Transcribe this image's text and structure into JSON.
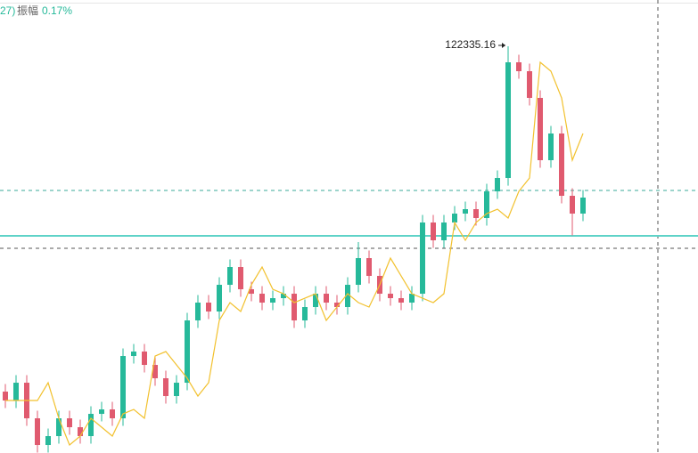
{
  "header": {
    "prefix": "27)",
    "label": "振幅",
    "value": "0.17%"
  },
  "chart_data": {
    "type": "candlestick",
    "ylim": [
      74078,
      127826
    ],
    "up_color": "#26b99a",
    "down_color": "#e05a6f",
    "ma_color": "#f2c12e",
    "open": [
      81362,
      80306,
      82418,
      78194,
      75026,
      76082,
      78194,
      77138,
      76082,
      78722,
      79250,
      78194,
      85586,
      86114,
      84530,
      82946,
      80834,
      82418,
      89810,
      91922,
      90866,
      94034,
      96146,
      93506,
      92978,
      91922,
      92450,
      92978,
      89810,
      91394,
      92978,
      91922,
      91394,
      94034,
      97202,
      95090,
      92978,
      92450,
      91922,
      92978,
      101426,
      99314,
      101426,
      102482,
      103010,
      101954,
      105122,
      106706,
      120434,
      119378,
      116210,
      108818,
      111986,
      104594,
      102482
    ],
    "close": [
      80306,
      82418,
      78194,
      75026,
      76082,
      78194,
      77138,
      76082,
      78722,
      79250,
      78194,
      85586,
      86114,
      84530,
      82946,
      80834,
      82418,
      89810,
      91922,
      90866,
      94034,
      96146,
      93506,
      92978,
      91922,
      92450,
      92978,
      89810,
      91394,
      92978,
      91922,
      91394,
      94034,
      97202,
      95090,
      92978,
      92450,
      91922,
      92978,
      101426,
      99314,
      101426,
      102482,
      103010,
      101954,
      105122,
      106706,
      120434,
      119378,
      116210,
      108818,
      111986,
      104594,
      102482,
      104383
    ],
    "high": [
      82262,
      83318,
      83318,
      79094,
      76982,
      79094,
      79094,
      78038,
      79622,
      80150,
      80150,
      86486,
      87014,
      87014,
      85430,
      83846,
      83318,
      90710,
      92822,
      92822,
      94934,
      97046,
      97046,
      94406,
      93878,
      93350,
      93878,
      93878,
      92294,
      93878,
      93878,
      92822,
      94934,
      99100,
      98102,
      95990,
      93878,
      93350,
      93878,
      102326,
      102326,
      102326,
      103382,
      103910,
      103910,
      106022,
      107606,
      122335.16,
      121334,
      120278,
      117110,
      112886,
      112886,
      105494,
      105283
    ],
    "low": [
      79406,
      79406,
      77294,
      74126,
      74126,
      75182,
      76238,
      75182,
      75182,
      77822,
      77294,
      77294,
      84686,
      83630,
      82046,
      79934,
      79934,
      81518,
      88910,
      89966,
      89966,
      93134,
      92606,
      92078,
      91022,
      91022,
      91550,
      88910,
      88910,
      90494,
      91022,
      90494,
      90494,
      93134,
      94190,
      92078,
      91550,
      91022,
      91022,
      92078,
      98414,
      98414,
      100526,
      101582,
      101054,
      101054,
      104222,
      105800,
      118478,
      115310,
      107918,
      107918,
      103694,
      99900,
      101582
    ],
    "ma": [
      80306,
      80306,
      80306,
      80306,
      82418,
      78194,
      75026,
      76082,
      78194,
      77138,
      76082,
      78722,
      79250,
      78194,
      85586,
      86114,
      84530,
      82946,
      80834,
      82418,
      89810,
      91922,
      90866,
      94034,
      96146,
      93506,
      92978,
      91922,
      92450,
      92978,
      89810,
      91394,
      92978,
      91922,
      91394,
      94034,
      97202,
      95090,
      92978,
      92450,
      91922,
      92978,
      101426,
      99314,
      101426,
      102482,
      103010,
      101954,
      105122,
      106706,
      120434,
      119378,
      116210,
      108818,
      111986
    ],
    "high_label": "122335.16",
    "levels": [
      {
        "value": 105228,
        "style": "dashed",
        "color": "#3aa89a"
      },
      {
        "value": 99842,
        "style": "solid",
        "color": "#5fd3c8"
      },
      {
        "value": 98364,
        "style": "dashed",
        "color": "#555555"
      }
    ]
  }
}
